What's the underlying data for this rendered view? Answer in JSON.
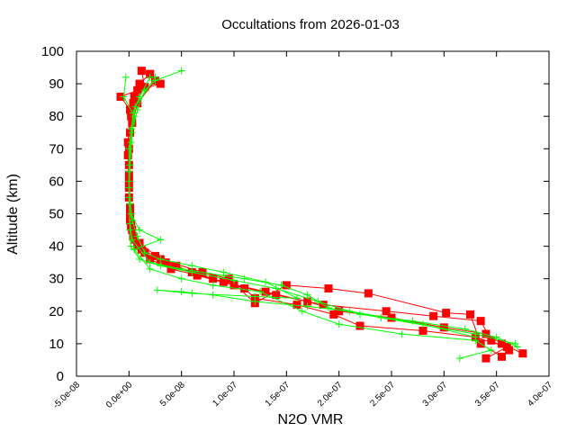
{
  "chart_data": {
    "type": "line",
    "title": "Occultations from 2026-01-03",
    "xlabel": "N2O VMR",
    "ylabel": "Altitude (km)",
    "xlim": [
      -5e-08,
      4e-07
    ],
    "ylim": [
      0,
      100
    ],
    "xticks": [
      "-5.0e-08",
      "0.0e+00",
      "5.0e-08",
      "1.0e-07",
      "1.5e-07",
      "2.0e-07",
      "2.5e-07",
      "3.0e-07",
      "3.5e-07",
      "4.0e-07"
    ],
    "xtick_values": [
      -5e-08,
      0,
      5e-08,
      1e-07,
      1.5e-07,
      2e-07,
      2.5e-07,
      3e-07,
      3.5e-07,
      4e-07
    ],
    "yticks": [
      "0",
      "10",
      "20",
      "30",
      "40",
      "50",
      "60",
      "70",
      "80",
      "90",
      "100"
    ],
    "ytick_values": [
      0,
      10,
      20,
      30,
      40,
      50,
      60,
      70,
      80,
      90,
      100
    ],
    "grid": false,
    "legend": "none",
    "series": [
      {
        "color": "#ff0000",
        "marker": "square",
        "profiles": [
          [
            [
              3.75e-07,
              7
            ],
            [
              3.55e-07,
              10
            ],
            [
              3.4e-07,
              13
            ],
            [
              3e-07,
              15
            ],
            [
              2.5e-07,
              18
            ],
            [
              2e-07,
              20
            ],
            [
              1.7e-07,
              23
            ],
            [
              1.3e-07,
              26
            ],
            [
              9e-08,
              29
            ],
            [
              6e-08,
              32
            ],
            [
              3.5e-08,
              35
            ],
            [
              1.5e-08,
              38
            ],
            [
              5e-09,
              42
            ],
            [
              2e-09,
              46
            ],
            [
              1e-09,
              50
            ],
            [
              0,
              60
            ],
            [
              0,
              70
            ],
            [
              2e-09,
              80
            ],
            [
              5e-09,
              86
            ],
            [
              1e-08,
              90
            ],
            [
              2e-08,
              93
            ]
          ],
          [
            [
              3.4e-07,
              5.5
            ],
            [
              3.6e-07,
              9
            ],
            [
              3.3e-07,
              12
            ],
            [
              2.8e-07,
              14
            ],
            [
              2.2e-07,
              15.5
            ],
            [
              1.95e-07,
              19
            ],
            [
              1.6e-07,
              22
            ],
            [
              1.2e-07,
              24
            ],
            [
              1.1e-07,
              27
            ],
            [
              8e-08,
              30
            ],
            [
              4e-08,
              33
            ],
            [
              2e-08,
              36
            ],
            [
              8e-09,
              40
            ],
            [
              3e-09,
              45
            ],
            [
              1e-09,
              52
            ],
            [
              0,
              62
            ],
            [
              -1e-09,
              72
            ],
            [
              1e-09,
              82
            ],
            [
              -8e-09,
              86
            ],
            [
              8e-09,
              88
            ],
            [
              3e-08,
              90
            ]
          ],
          [
            [
              3.62e-07,
              8
            ],
            [
              3.45e-07,
              11
            ],
            [
              3.35e-07,
              17
            ],
            [
              2.9e-07,
              18.5
            ],
            [
              2.45e-07,
              20
            ],
            [
              1.85e-07,
              22
            ],
            [
              1.4e-07,
              25
            ],
            [
              1e-07,
              28
            ],
            [
              6.5e-08,
              31
            ],
            [
              4.5e-08,
              34
            ],
            [
              2.5e-08,
              37
            ],
            [
              1.2e-08,
              39
            ],
            [
              4e-09,
              43
            ],
            [
              1e-09,
              48
            ],
            [
              0,
              55
            ],
            [
              0,
              65
            ],
            [
              1e-09,
              75
            ],
            [
              4e-09,
              84
            ],
            [
              1.5e-08,
              89
            ],
            [
              1.2e-08,
              94
            ]
          ],
          [
            [
              3.55e-07,
              6
            ],
            [
              3.35e-07,
              10
            ],
            [
              3.25e-07,
              19
            ],
            [
              3.02e-07,
              19.5
            ],
            [
              2.28e-07,
              25.5
            ],
            [
              1.9e-07,
              27
            ],
            [
              1.5e-07,
              28
            ],
            [
              1.2e-07,
              22.5
            ],
            [
              9.5e-08,
              30
            ],
            [
              7e-08,
              32
            ],
            [
              3e-08,
              36
            ],
            [
              1e-08,
              41
            ],
            [
              2e-09,
              47
            ],
            [
              0,
              58
            ],
            [
              -1e-09,
              68
            ],
            [
              3e-09,
              78
            ],
            [
              8e-09,
              84
            ],
            [
              2.5e-08,
              91
            ],
            [
              2e-08,
              93
            ]
          ]
        ]
      },
      {
        "color": "#00ff00",
        "marker": "plus",
        "profiles": [
          [
            [
              3.7e-07,
              9
            ],
            [
              3.5e-07,
              12
            ],
            [
              3.2e-07,
              14.5
            ],
            [
              2.7e-07,
              17
            ],
            [
              2.2e-07,
              19
            ],
            [
              1.8e-07,
              23
            ],
            [
              1.4e-07,
              27
            ],
            [
              1e-07,
              29.5
            ],
            [
              6e-08,
              32
            ],
            [
              3e-08,
              34
            ],
            [
              1e-08,
              36
            ],
            [
              2e-09,
              40
            ],
            [
              1e-09,
              45
            ],
            [
              0,
              55
            ],
            [
              1e-09,
              65
            ],
            [
              3e-09,
              75
            ],
            [
              8e-09,
              82
            ],
            [
              1.5e-08,
              88
            ],
            [
              2.5e-08,
              91
            ],
            [
              5e-08,
              94
            ]
          ],
          [
            [
              3.15e-07,
              5.5
            ],
            [
              3.45e-07,
              8
            ],
            [
              3.3e-07,
              11
            ],
            [
              2.6e-07,
              13
            ],
            [
              2e-07,
              16
            ],
            [
              1.65e-07,
              20
            ],
            [
              1.25e-07,
              26
            ],
            [
              8e-08,
              28
            ],
            [
              5e-08,
              30
            ],
            [
              2e-08,
              33
            ],
            [
              5e-09,
              39
            ],
            [
              3e-08,
              42
            ],
            [
              1e-08,
              45
            ],
            [
              2e-09,
              50
            ],
            [
              0,
              60
            ],
            [
              2e-09,
              72
            ],
            [
              5e-09,
              80
            ],
            [
              -5e-09,
              86
            ],
            [
              -3e-09,
              92
            ]
          ],
          [
            [
              3.68e-07,
              10
            ],
            [
              3.3e-07,
              13
            ],
            [
              2.4e-07,
              18
            ],
            [
              1.9e-07,
              21
            ],
            [
              1.7e-07,
              25
            ],
            [
              1.45e-07,
              28
            ],
            [
              1.1e-07,
              30
            ],
            [
              9e-08,
              31
            ],
            [
              5e-08,
              33
            ],
            [
              2e-08,
              35
            ],
            [
              3e-09,
              42
            ],
            [
              1e-09,
              47
            ],
            [
              0,
              58
            ],
            [
              0,
              70
            ],
            [
              4e-09,
              81
            ],
            [
              1e-08,
              86
            ],
            [
              2e-08,
              92
            ]
          ],
          [
            [
              3.3e-07,
              12
            ],
            [
              2.8e-07,
              16
            ],
            [
              2.1e-07,
              20
            ],
            [
              1.7e-07,
              21.5
            ],
            [
              1.2e-07,
              23
            ],
            [
              8e-08,
              25
            ],
            [
              5e-08,
              26
            ],
            [
              2.7e-08,
              26.5
            ],
            [
              6e-08,
              25.5
            ],
            [
              1.2e-07,
              24.5
            ],
            [
              1.6e-07,
              24
            ],
            [
              1.3e-07,
              29
            ],
            [
              9e-08,
              32
            ],
            [
              6e-08,
              34
            ],
            [
              3e-08,
              36
            ],
            [
              1.5e-08,
              38
            ],
            [
              8e-09,
              43
            ],
            [
              3e-09,
              48
            ],
            [
              1e-09,
              53
            ],
            [
              0,
              63
            ],
            [
              2e-09,
              76
            ],
            [
              6e-09,
              83
            ],
            [
              2.5e-08,
              92
            ]
          ]
        ]
      }
    ]
  }
}
